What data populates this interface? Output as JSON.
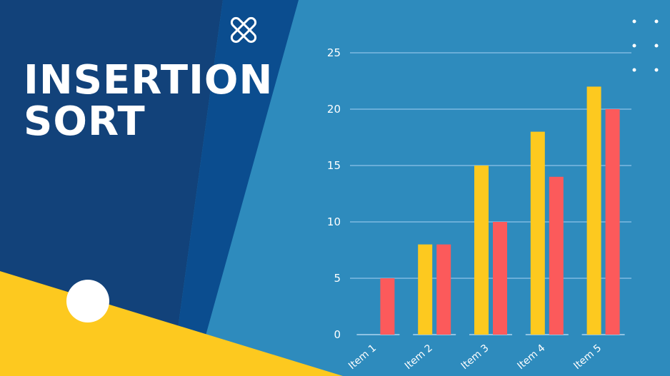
{
  "title": {
    "line1": "INSERTION",
    "line2": "SORT"
  },
  "colors": {
    "background": "#2e8bbd",
    "dark_panel": "#12427a",
    "mid_panel": "#0b4d8f",
    "yellow": "#fdc91f",
    "red": "#fc5a5b",
    "white": "#ffffff"
  },
  "decorations": {
    "cross_icon": "close-x-icon",
    "dots_icon": "dot-grid-icon",
    "circle": "white-circle"
  },
  "chart_data": {
    "type": "bar",
    "categories": [
      "Item 1",
      "Item 2",
      "Item 3",
      "Item 4",
      "Item 5"
    ],
    "series": [
      {
        "values": [
          0,
          8,
          15,
          18,
          22
        ],
        "color": "#fdc91f"
      },
      {
        "values": [
          5,
          8,
          10,
          14,
          20
        ],
        "color": "#fc5a5b"
      }
    ],
    "y_ticks": [
      "0",
      "5",
      "10",
      "15",
      "20",
      "25"
    ],
    "ylim": [
      0,
      25
    ],
    "grid": true,
    "legend": "none",
    "title": "",
    "xlabel": "",
    "ylabel": ""
  }
}
